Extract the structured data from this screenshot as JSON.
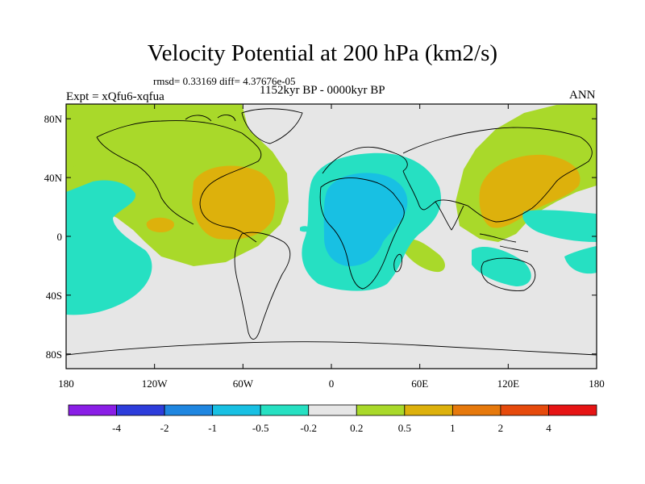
{
  "chart_data": {
    "type": "contour-map",
    "title": "Velocity Potential at 200 hPa (km2/s)",
    "stats": "rmsd= 0.33169 diff= 4.37676e-05",
    "left_label": "Expt = xQfu6-xqfua",
    "center_label": "1152kyr BP - 0000kyr BP",
    "right_label": "ANN",
    "x_ticks": [
      "180",
      "120W",
      "60W",
      "0",
      "60E",
      "120E",
      "180"
    ],
    "y_ticks": [
      "80N",
      "40N",
      "0",
      "40S",
      "80S"
    ],
    "lon_range": [
      -180,
      180
    ],
    "lat_range": [
      -90,
      90
    ],
    "colorbar": {
      "labels": [
        "-4",
        "-2",
        "-1",
        "-0.5",
        "-0.2",
        "0.2",
        "0.5",
        "1",
        "2",
        "4"
      ],
      "colors": [
        "#8a1ee6",
        "#2d3ddb",
        "#1f86e0",
        "#18c0e3",
        "#26e0c2",
        "#e6e6e6",
        "#a9d92a",
        "#ddb10c",
        "#e6790c",
        "#e64a0c",
        "#e61414"
      ]
    },
    "regions": [
      {
        "name": "positive-0.2-0.5",
        "color": "#a9d92a"
      },
      {
        "name": "positive-0.5-1",
        "color": "#ddb10c"
      },
      {
        "name": "negative-0.2-0.5",
        "color": "#26e0c2"
      },
      {
        "name": "negative-0.5-1",
        "color": "#18c0e3"
      }
    ]
  }
}
